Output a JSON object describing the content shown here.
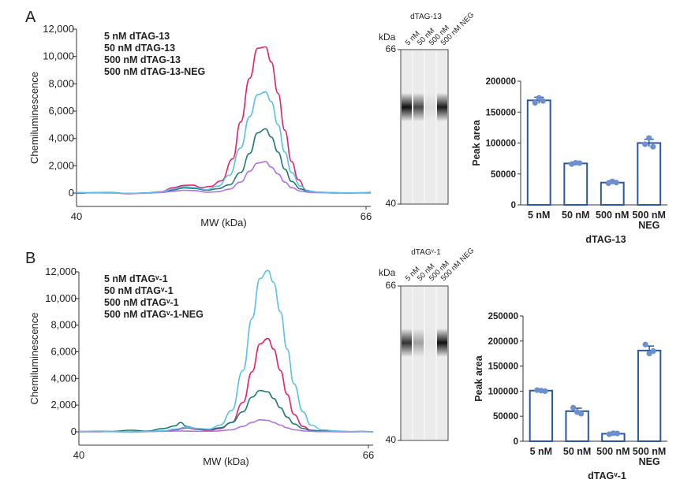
{
  "panels": [
    {
      "letter": "A",
      "chart_data": [
        {
          "type": "line",
          "title": "",
          "xlabel": "MW (kDa)",
          "ylabel": "Chemiluminescence",
          "xlim": [
            40,
            66
          ],
          "ylim": [
            0,
            12000
          ],
          "xtick_labels": [
            "40",
            "66"
          ],
          "ytick_values": [
            0,
            2000,
            4000,
            6000,
            8000,
            10000,
            12000
          ],
          "ytick_labels": [
            "0",
            "2,000",
            "4,000",
            "6,000",
            "8,000",
            "10,000",
            "12,000"
          ],
          "series": [
            {
              "name": "5 nM dTAG-13",
              "color": "#e3226a",
              "x": [
                40,
                41.5,
                43,
                44.5,
                46,
                47.5,
                48.5,
                49.5,
                50.3,
                51,
                51.8,
                52.8,
                53.8,
                54.5,
                55.3,
                56,
                56.7,
                57.2,
                57.8,
                58.4,
                59,
                59.6,
                60.3,
                61,
                61.8,
                62.8,
                64,
                65,
                66
              ],
              "y": [
                -20,
                30,
                40,
                -50,
                0,
                100,
                380,
                560,
                580,
                400,
                480,
                900,
                2500,
                5200,
                8400,
                10600,
                10700,
                9600,
                7300,
                4600,
                2300,
                980,
                200,
                70,
                40,
                0,
                20,
                10,
                40
              ]
            },
            {
              "name": "50 nM dTAG-13",
              "color": "#1f7a73",
              "x": [
                40,
                41.5,
                43,
                44.5,
                46,
                47.5,
                48.5,
                49.5,
                50.5,
                51.5,
                52.5,
                53.5,
                54.5,
                55.3,
                56,
                56.7,
                57.2,
                57.8,
                58.4,
                59,
                59.8,
                60.5,
                61.5,
                62.8,
                64,
                65,
                66
              ],
              "y": [
                0,
                20,
                30,
                -30,
                0,
                60,
                220,
                380,
                330,
                200,
                320,
                600,
                1500,
                2900,
                4400,
                4700,
                4100,
                3000,
                1750,
                850,
                300,
                100,
                60,
                30,
                0,
                20,
                10
              ]
            },
            {
              "name": "500 nM dTAG-13",
              "color": "#b070e8",
              "x": [
                40,
                41.5,
                43,
                44.5,
                46,
                47.5,
                48.5,
                49.5,
                50.5,
                51.5,
                52.5,
                53.5,
                54.5,
                55.3,
                56,
                56.7,
                57.2,
                57.8,
                58.4,
                59,
                59.8,
                60.5,
                61.5,
                62.8,
                64,
                65,
                66
              ],
              "y": [
                20,
                10,
                0,
                -40,
                -20,
                40,
                120,
                200,
                180,
                60,
                100,
                280,
                800,
                1600,
                2200,
                2300,
                1900,
                1400,
                800,
                400,
                150,
                50,
                30,
                10,
                0,
                10,
                0
              ]
            },
            {
              "name": "500 nM dTAG-13-NEG",
              "color": "#5bbfe9",
              "x": [
                40,
                41.5,
                43,
                44.5,
                46,
                47.5,
                48.5,
                49.5,
                50.5,
                51.5,
                52.5,
                53.5,
                54.5,
                55.3,
                56,
                56.7,
                57.2,
                57.8,
                58.4,
                59,
                59.8,
                60.5,
                61.5,
                62.8,
                64,
                65,
                66
              ],
              "y": [
                40,
                30,
                20,
                -30,
                0,
                80,
                300,
                460,
                400,
                250,
                500,
                1300,
                3300,
                5600,
                7200,
                7400,
                6700,
                5000,
                3000,
                1500,
                500,
                150,
                60,
                30,
                10,
                20,
                0
              ]
            }
          ]
        },
        {
          "type": "gel",
          "title": "dTAG-13",
          "unit_label": "kDa",
          "top_marker": "66",
          "bottom_marker": "40",
          "lanes": [
            "5 nM",
            "50 nM",
            "500 nM",
            "500 nM NEG"
          ],
          "band_intensity": [
            1.0,
            0.75,
            0.08,
            0.95
          ]
        },
        {
          "type": "bar",
          "categories": [
            "5 nM",
            "50 nM",
            "500 nM",
            "500 nM\nNEG"
          ],
          "values": [
            169000,
            67000,
            36000,
            100000
          ],
          "errors": [
            5000,
            2000,
            3000,
            6000
          ],
          "points": [
            [
              165000,
              173000,
              168000
            ],
            [
              66000,
              68000,
              67500
            ],
            [
              35000,
              38000,
              36000
            ],
            [
              98000,
              108000,
              94000
            ]
          ],
          "xlabel": "dTAG-13",
          "ylabel": "Peak area",
          "ylim": [
            0,
            200000
          ],
          "ytick_labels": [
            "0",
            "50000",
            "100000",
            "150000",
            "200000"
          ],
          "color": "#2a56a6",
          "point_color": "#6b8fd0"
        }
      ]
    },
    {
      "letter": "B",
      "chart_data": [
        {
          "type": "line",
          "title": "",
          "xlabel": "MW (kDa)",
          "ylabel": "Chemiluminescence",
          "xlim": [
            40,
            66
          ],
          "ylim": [
            0,
            13000
          ],
          "xtick_labels": [
            "40",
            "66"
          ],
          "ytick_values": [
            0,
            2000,
            4000,
            6000,
            8000,
            10000,
            12000
          ],
          "ytick_labels": [
            "0",
            "2,000",
            "4,000",
            "6,000",
            "8,000",
            "10,000",
            "12,000"
          ],
          "series": [
            {
              "name": "5 nM dTAGᵛ-1",
              "color": "#e3226a",
              "x": [
                40,
                41.5,
                43,
                44.5,
                46,
                47.5,
                48.5,
                49.5,
                50.5,
                51.5,
                52.5,
                53.5,
                54.5,
                55.3,
                56,
                56.7,
                57.2,
                57.8,
                58.4,
                59,
                59.8,
                60.5,
                61.5,
                62.8,
                64,
                65,
                66
              ],
              "y": [
                30,
                10,
                20,
                -20,
                10,
                60,
                150,
                300,
                180,
                100,
                250,
                700,
                2200,
                4500,
                6600,
                7000,
                6200,
                4600,
                2800,
                1300,
                400,
                120,
                60,
                20,
                0,
                20,
                10
              ]
            },
            {
              "name": "50 nM dTAGᵛ-1",
              "color": "#1f7a73",
              "x": [
                40,
                41.5,
                43,
                44.5,
                46,
                47.5,
                48.5,
                49,
                49.5,
                50.5,
                51.5,
                52.5,
                53.5,
                54.5,
                55.3,
                56,
                56.7,
                57.2,
                57.8,
                58.4,
                59,
                59.8,
                60.5,
                61.5,
                62.8,
                64,
                65,
                66
              ],
              "y": [
                0,
                40,
                30,
                120,
                50,
                250,
                450,
                700,
                400,
                200,
                180,
                300,
                700,
                1500,
                2600,
                3100,
                3000,
                2500,
                1800,
                1100,
                600,
                250,
                100,
                60,
                30,
                10,
                30,
                0
              ]
            },
            {
              "name": "500 nM dTAGᵛ-1",
              "color": "#b070e8",
              "x": [
                40,
                41.5,
                43,
                44.5,
                46,
                47.5,
                49,
                50.5,
                52,
                53.5,
                54.5,
                55.3,
                56,
                56.7,
                57.2,
                57.8,
                58.4,
                59,
                60,
                61,
                62.5,
                64,
                65,
                66
              ],
              "y": [
                10,
                0,
                20,
                -10,
                20,
                40,
                60,
                40,
                50,
                150,
                400,
                700,
                900,
                850,
                700,
                500,
                300,
                150,
                60,
                20,
                10,
                0,
                10,
                0
              ]
            },
            {
              "name": "500 nM dTAGᵛ-1-NEG",
              "color": "#5bbfe9",
              "x": [
                40,
                41.5,
                43,
                44.5,
                46,
                47.5,
                48.5,
                49.5,
                50.5,
                51.5,
                52.5,
                53.5,
                54.5,
                55.3,
                56,
                56.7,
                57.2,
                57.8,
                58.4,
                59,
                59.8,
                60.5,
                61.5,
                62.8,
                64,
                65,
                66
              ],
              "y": [
                20,
                30,
                10,
                0,
                20,
                80,
                200,
                350,
                250,
                200,
                500,
                1600,
                4600,
                8500,
                11500,
                12100,
                11200,
                9000,
                6200,
                3600,
                1500,
                500,
                150,
                60,
                20,
                30,
                10
              ]
            }
          ]
        },
        {
          "type": "gel",
          "title": "dTAGᵛ-1",
          "unit_label": "kDa",
          "top_marker": "66",
          "bottom_marker": "40",
          "lanes": [
            "5 nM",
            "50 nM",
            "500 nM",
            "500 nM NEG"
          ],
          "band_intensity": [
            0.85,
            0.35,
            0.03,
            1.0
          ]
        },
        {
          "type": "bar",
          "categories": [
            "5 nM",
            "50 nM",
            "500 nM",
            "500 nM\nNEG"
          ],
          "values": [
            101000,
            60000,
            15000,
            181000
          ],
          "errors": [
            2000,
            6000,
            1500,
            9000
          ],
          "points": [
            [
              102000,
              101000,
              100000
            ],
            [
              67000,
              58000,
              55000
            ],
            [
              14000,
              16000,
              15500
            ],
            [
              193000,
              175000,
              180000
            ]
          ],
          "xlabel": "dTAGᵛ-1",
          "ylabel": "Peak area",
          "ylim": [
            0,
            250000
          ],
          "ytick_labels": [
            "0",
            "50000",
            "100000",
            "150000",
            "200000",
            "250000"
          ],
          "color": "#2a56a6",
          "point_color": "#6b8fd0"
        }
      ]
    }
  ]
}
